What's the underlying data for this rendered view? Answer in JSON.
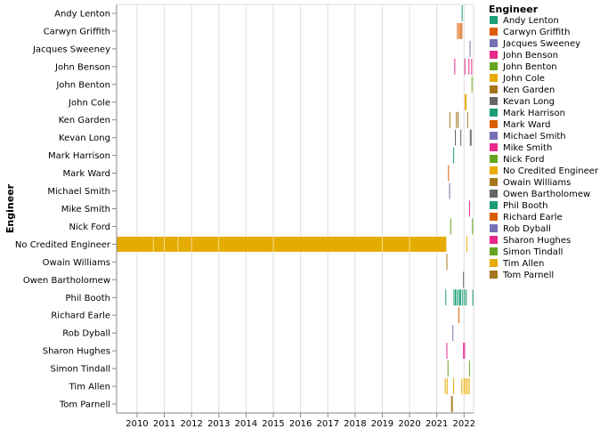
{
  "chart_data": {
    "type": "timeline",
    "title": "",
    "ylabel": "Engineer",
    "xlabel": "",
    "x_ticks": [
      "2010",
      "2011",
      "2012",
      "2013",
      "2014",
      "2015",
      "2016",
      "2017",
      "2018",
      "2019",
      "2020",
      "2021",
      "2022"
    ],
    "xlim": [
      2009.25,
      2022.35
    ],
    "grid": true,
    "legend": {
      "title": "Engineer",
      "position": "right"
    },
    "engineers": [
      {
        "name": "Andy Lenton",
        "color": "#1b9e77",
        "events": [
          2021.93
        ]
      },
      {
        "name": "Carwyn Griffith",
        "color": "#d95f02",
        "events": [
          2021.76,
          2021.82,
          2021.87,
          2021.92
        ]
      },
      {
        "name": "Jacques Sweeney",
        "color": "#7570b3",
        "events": [
          2022.22
        ]
      },
      {
        "name": "John Benson",
        "color": "#e7298a",
        "events": [
          2021.66,
          2022.03,
          2022.18,
          2022.28
        ]
      },
      {
        "name": "John Benton",
        "color": "#66a61e",
        "events": [
          2022.29
        ]
      },
      {
        "name": "John Cole",
        "color": "#e6ab02",
        "events": [
          2022.04,
          2022.08
        ]
      },
      {
        "name": "Ken Garden",
        "color": "#a6761d",
        "events": [
          2021.48,
          2021.72,
          2021.78,
          2022.13
        ]
      },
      {
        "name": "Kevan Long",
        "color": "#666666",
        "events": [
          2021.68,
          2021.88,
          2022.23,
          2022.26
        ]
      },
      {
        "name": "Mark Harrison",
        "color": "#1b9e77",
        "events": [
          2021.62
        ]
      },
      {
        "name": "Mark Ward",
        "color": "#d95f02",
        "events": [
          2021.43
        ]
      },
      {
        "name": "Michael Smith",
        "color": "#7570b3",
        "events": [
          2021.47
        ]
      },
      {
        "name": "Mike Smith",
        "color": "#e7298a",
        "events": [
          2022.2
        ]
      },
      {
        "name": "Nick Ford",
        "color": "#66a61e",
        "events": [
          2021.51,
          2022.31
        ]
      },
      {
        "name": "No Credited Engineer",
        "color": "#e6ab02",
        "events": [],
        "ranges": [
          [
            2009.25,
            2021.35
          ]
        ],
        "extra": [
          2022.1
        ]
      },
      {
        "name": "Owain Williams",
        "color": "#a6761d",
        "events": [
          2021.37
        ]
      },
      {
        "name": "Owen Bartholomew",
        "color": "#666666",
        "events": [
          2021.98
        ]
      },
      {
        "name": "Phil Booth",
        "color": "#1b9e77",
        "events": [
          2021.33,
          2021.63,
          2021.68,
          2021.73,
          2021.79,
          2021.84,
          2021.88,
          2021.95,
          2022.02,
          2022.08,
          2022.32
        ]
      },
      {
        "name": "Richard Earle",
        "color": "#d95f02",
        "events": [
          2021.81
        ]
      },
      {
        "name": "Rob Dyball",
        "color": "#7570b3",
        "events": [
          2021.59
        ]
      },
      {
        "name": "Sharon Hughes",
        "color": "#e7298a",
        "events": [
          2021.37,
          2021.98,
          2022.02
        ]
      },
      {
        "name": "Simon Tindall",
        "color": "#66a61e",
        "events": [
          2021.41,
          2022.2
        ]
      },
      {
        "name": "Tim Allen",
        "color": "#e6ab02",
        "events": [
          2021.31,
          2021.38,
          2021.62,
          2021.92,
          2022.0,
          2022.06,
          2022.12,
          2022.19
        ]
      },
      {
        "name": "Tom Parnell",
        "color": "#a6761d",
        "events": [
          2021.54,
          2021.57
        ]
      }
    ]
  }
}
